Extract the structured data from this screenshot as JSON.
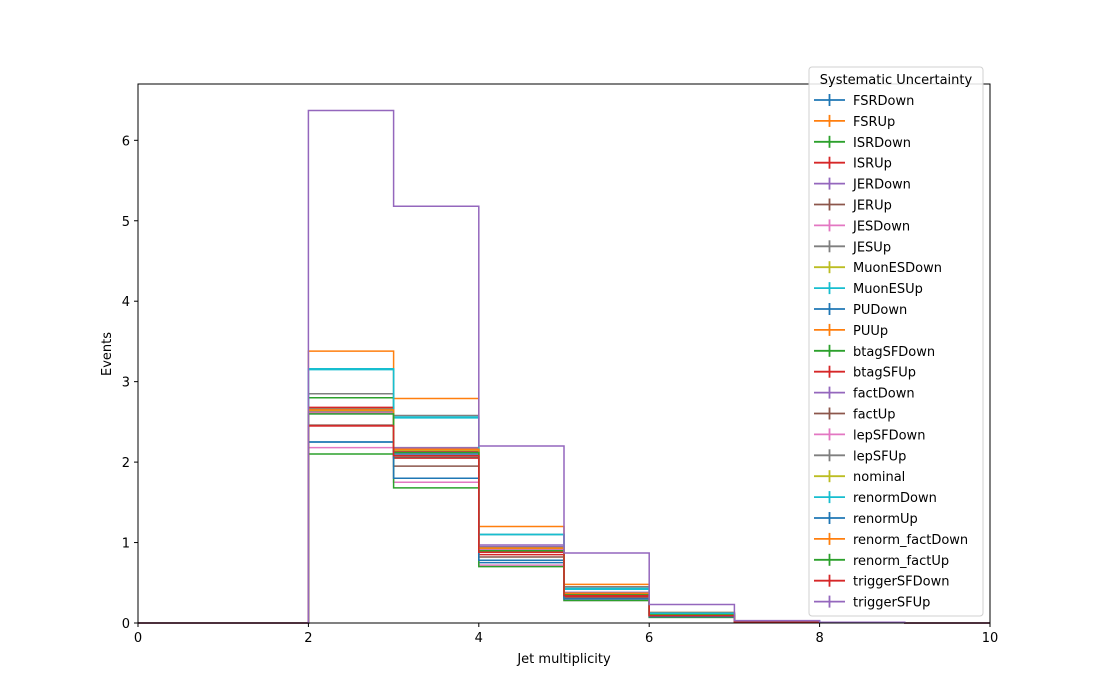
{
  "chart_data": {
    "type": "line",
    "drawstyle": "step",
    "xlabel": "Jet multiplicity",
    "ylabel": "Events",
    "xlim": [
      0,
      10
    ],
    "ylim": [
      0,
      6.7
    ],
    "xticks": [
      "0",
      "2",
      "4",
      "6",
      "8",
      "10"
    ],
    "yticks": [
      "0",
      "1",
      "2",
      "3",
      "4",
      "5",
      "6"
    ],
    "grid": false,
    "legend": {
      "title": "Systematic Uncertainty",
      "placement": "top-right"
    },
    "bin_edges": [
      0,
      1,
      2,
      3,
      4,
      5,
      6,
      7,
      8,
      9,
      10
    ],
    "series": [
      {
        "name": "FSRDown",
        "color": "#1f77b4",
        "values": [
          0,
          0,
          2.25,
          2.1,
          0.75,
          0.33,
          0.09,
          0.01,
          0.005,
          0
        ]
      },
      {
        "name": "FSRUp",
        "color": "#ff7f0e",
        "values": [
          0,
          0,
          3.38,
          2.79,
          1.2,
          0.48,
          0.13,
          0.02,
          0.005,
          0
        ]
      },
      {
        "name": "ISRDown",
        "color": "#2ca02c",
        "values": [
          0,
          0,
          2.8,
          2.15,
          0.9,
          0.35,
          0.1,
          0.01,
          0.005,
          0
        ]
      },
      {
        "name": "ISRUp",
        "color": "#d62728",
        "values": [
          0,
          0,
          2.45,
          2.05,
          0.85,
          0.33,
          0.09,
          0.01,
          0.005,
          0
        ]
      },
      {
        "name": "JERDown",
        "color": "#9467bd",
        "values": [
          0,
          0,
          2.6,
          2.18,
          0.95,
          0.37,
          0.11,
          0.02,
          0.005,
          0
        ]
      },
      {
        "name": "JERUp",
        "color": "#8c564b",
        "values": [
          0,
          0,
          2.62,
          1.95,
          0.82,
          0.31,
          0.08,
          0.01,
          0.005,
          0
        ]
      },
      {
        "name": "JESDown",
        "color": "#e377c2",
        "values": [
          0,
          0,
          2.18,
          1.75,
          0.72,
          0.28,
          0.07,
          0.01,
          0.005,
          0
        ]
      },
      {
        "name": "JESUp",
        "color": "#7f7f7f",
        "values": [
          0,
          0,
          2.85,
          2.58,
          1.1,
          0.45,
          0.13,
          0.02,
          0.005,
          0
        ]
      },
      {
        "name": "MuonESDown",
        "color": "#bcbd22",
        "values": [
          0,
          0,
          2.63,
          2.17,
          0.92,
          0.36,
          0.1,
          0.01,
          0.005,
          0
        ]
      },
      {
        "name": "MuonESUp",
        "color": "#17becf",
        "values": [
          0,
          0,
          3.15,
          2.55,
          1.1,
          0.42,
          0.12,
          0.02,
          0.005,
          0
        ]
      },
      {
        "name": "PUDown",
        "color": "#1f77b4",
        "values": [
          0,
          0,
          2.65,
          2.15,
          0.92,
          0.36,
          0.1,
          0.01,
          0.005,
          0
        ]
      },
      {
        "name": "PUUp",
        "color": "#ff7f0e",
        "values": [
          0,
          0,
          2.67,
          2.14,
          0.93,
          0.37,
          0.1,
          0.01,
          0.005,
          0
        ]
      },
      {
        "name": "btagSFDown",
        "color": "#2ca02c",
        "values": [
          0,
          0,
          2.1,
          1.68,
          0.7,
          0.28,
          0.07,
          0.01,
          0.005,
          0
        ]
      },
      {
        "name": "btagSFUp",
        "color": "#d62728",
        "values": [
          0,
          0,
          2.68,
          2.13,
          0.92,
          0.37,
          0.1,
          0.01,
          0.005,
          0
        ]
      },
      {
        "name": "factDown",
        "color": "#9467bd",
        "values": [
          0,
          0,
          2.63,
          2.17,
          0.97,
          0.38,
          0.11,
          0.02,
          0.005,
          0
        ]
      },
      {
        "name": "factUp",
        "color": "#8c564b",
        "values": [
          0,
          0,
          2.46,
          2.06,
          0.88,
          0.34,
          0.09,
          0.01,
          0.005,
          0
        ]
      },
      {
        "name": "lepSFDown",
        "color": "#e377c2",
        "values": [
          0,
          0,
          2.61,
          2.12,
          0.91,
          0.35,
          0.1,
          0.01,
          0.005,
          0
        ]
      },
      {
        "name": "lepSFUp",
        "color": "#7f7f7f",
        "values": [
          0,
          0,
          2.66,
          2.16,
          0.94,
          0.37,
          0.11,
          0.01,
          0.005,
          0
        ]
      },
      {
        "name": "nominal",
        "color": "#bcbd22",
        "values": [
          0,
          0,
          2.64,
          2.15,
          0.93,
          0.36,
          0.1,
          0.01,
          0.005,
          0
        ]
      },
      {
        "name": "renormDown",
        "color": "#17becf",
        "values": [
          0,
          0,
          3.16,
          2.56,
          1.1,
          0.43,
          0.12,
          0.02,
          0.005,
          0
        ]
      },
      {
        "name": "renormUp",
        "color": "#1f77b4",
        "values": [
          0,
          0,
          2.25,
          1.8,
          0.78,
          0.3,
          0.08,
          0.01,
          0.005,
          0
        ]
      },
      {
        "name": "renorm_factDown",
        "color": "#ff7f0e",
        "values": [
          0,
          0,
          2.65,
          2.16,
          0.93,
          0.37,
          0.1,
          0.01,
          0.005,
          0
        ]
      },
      {
        "name": "renorm_factUp",
        "color": "#2ca02c",
        "values": [
          0,
          0,
          2.6,
          2.12,
          0.9,
          0.35,
          0.1,
          0.01,
          0.005,
          0
        ]
      },
      {
        "name": "triggerSFDown",
        "color": "#d62728",
        "values": [
          0,
          0,
          2.45,
          2.08,
          0.88,
          0.34,
          0.09,
          0.01,
          0.005,
          0
        ]
      },
      {
        "name": "triggerSFUp",
        "color": "#9467bd",
        "values": [
          0,
          0,
          6.37,
          5.18,
          2.2,
          0.87,
          0.23,
          0.03,
          0.01,
          0
        ]
      }
    ]
  }
}
